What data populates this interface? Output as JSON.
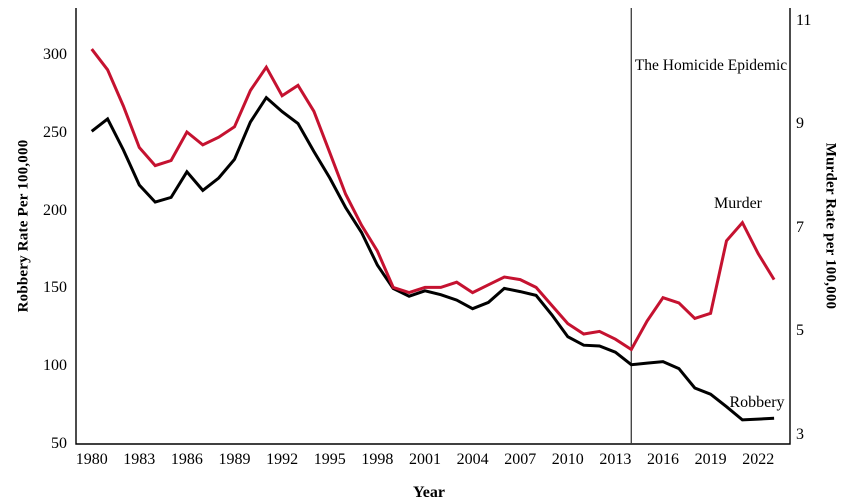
{
  "chart_data": {
    "type": "line",
    "title": "",
    "x_label": "Year",
    "x": [
      1980,
      1981,
      1982,
      1983,
      1984,
      1985,
      1986,
      1987,
      1988,
      1989,
      1990,
      1991,
      1992,
      1993,
      1994,
      1995,
      1996,
      1997,
      1998,
      1999,
      2000,
      2001,
      2002,
      2003,
      2004,
      2005,
      2006,
      2007,
      2008,
      2009,
      2010,
      2011,
      2012,
      2013,
      2014,
      2015,
      2016,
      2017,
      2018,
      2019,
      2020,
      2021,
      2022,
      2023
    ],
    "x_tick_labels": [
      1980,
      1983,
      1986,
      1989,
      1992,
      1995,
      1998,
      2001,
      2004,
      2007,
      2010,
      2013,
      2016,
      2019,
      2022
    ],
    "series": [
      {
        "name": "Robbery",
        "axis": "left",
        "color": "#000000",
        "values": [
          251,
          259,
          239,
          216.5,
          205.5,
          208.5,
          225,
          213,
          221,
          233,
          257,
          272.7,
          263.7,
          256,
          238,
          221,
          202,
          186,
          165,
          150,
          145,
          148.5,
          146,
          142.5,
          137,
          141,
          150,
          148,
          145.5,
          133,
          119,
          113.5,
          113,
          109,
          101,
          102,
          103,
          98.5,
          86,
          82,
          74,
          65.5,
          66,
          66.5
        ]
      },
      {
        "name": "Murder",
        "axis": "right",
        "color": "#c51230",
        "values": [
          10.45,
          10.05,
          9.35,
          8.55,
          8.2,
          8.3,
          8.85,
          8.6,
          8.75,
          8.95,
          9.65,
          10.1,
          9.55,
          9.75,
          9.25,
          8.45,
          7.65,
          7.05,
          6.55,
          5.85,
          5.75,
          5.85,
          5.85,
          5.95,
          5.75,
          5.9,
          6.05,
          6.0,
          5.85,
          5.5,
          5.15,
          4.95,
          5.0,
          4.85,
          4.65,
          5.2,
          5.65,
          5.55,
          5.25,
          5.35,
          6.75,
          7.1,
          6.5,
          6.0
        ]
      }
    ],
    "left_axis": {
      "label": "Robbery Rate Per 100,000",
      "ticks": [
        50,
        100,
        150,
        200,
        250,
        300
      ],
      "range": [
        50,
        303
      ]
    },
    "right_axis": {
      "label": "Murder Rate per 100,000",
      "ticks": [
        3,
        5,
        7,
        9,
        11
      ],
      "range": [
        2.8,
        11.25
      ]
    },
    "annotation": {
      "text": "The Homicide Epidemic",
      "line_at_year": 2014
    },
    "legend_position": "inline",
    "grid": "off",
    "colors": {
      "murder_line": "#c51230",
      "robbery_line": "#000000",
      "axis": "#000000",
      "annotation_line": "#3a3a3a"
    }
  }
}
